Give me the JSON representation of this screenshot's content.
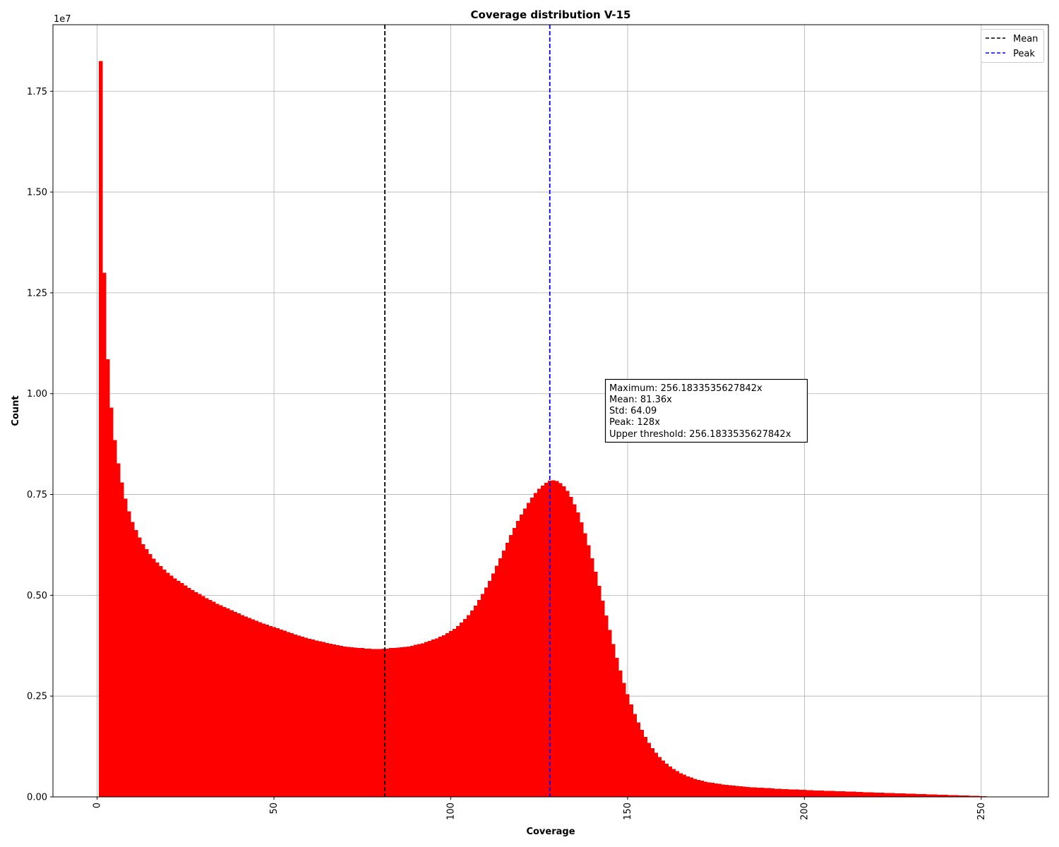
{
  "chart_data": {
    "type": "bar",
    "title": "Coverage distribution V-15",
    "xlabel": "Coverage",
    "ylabel": "Count",
    "xlim": [
      -12.5,
      269.0
    ],
    "ylim": [
      0,
      19150000
    ],
    "y_offset_label": "1e7",
    "x_ticks": [
      0,
      50,
      100,
      150,
      200,
      250
    ],
    "x_tick_labels": [
      "0",
      "50",
      "100",
      "150",
      "200",
      "250"
    ],
    "y_ticks": [
      0,
      2500000,
      5000000,
      7500000,
      10000000,
      12500000,
      15000000,
      17500000
    ],
    "y_tick_labels": [
      "0.00",
      "0.25",
      "0.50",
      "0.75",
      "1.00",
      "1.25",
      "1.50",
      "1.75"
    ],
    "grid": true,
    "bar_color": "#ff0000",
    "bin_start": 0.5,
    "bin_width": 1.0,
    "bin_values": [
      18250000,
      13000000,
      10850000,
      9650000,
      8850000,
      8270000,
      7800000,
      7400000,
      7080000,
      6820000,
      6620000,
      6430000,
      6270000,
      6140000,
      6020000,
      5910000,
      5810000,
      5720000,
      5640000,
      5560000,
      5490000,
      5420000,
      5360000,
      5300000,
      5240000,
      5180000,
      5130000,
      5080000,
      5030000,
      4980000,
      4930000,
      4880000,
      4840000,
      4790000,
      4750000,
      4710000,
      4670000,
      4630000,
      4590000,
      4550000,
      4510000,
      4470000,
      4440000,
      4400000,
      4370000,
      4330000,
      4300000,
      4270000,
      4240000,
      4210000,
      4180000,
      4150000,
      4120000,
      4090000,
      4060000,
      4030000,
      4000000,
      3970000,
      3950000,
      3920000,
      3900000,
      3880000,
      3860000,
      3840000,
      3820000,
      3800000,
      3780000,
      3760000,
      3750000,
      3730000,
      3720000,
      3710000,
      3700000,
      3690000,
      3690000,
      3680000,
      3680000,
      3670000,
      3670000,
      3670000,
      3680000,
      3680000,
      3690000,
      3690000,
      3700000,
      3710000,
      3720000,
      3730000,
      3750000,
      3770000,
      3790000,
      3810000,
      3840000,
      3870000,
      3900000,
      3930000,
      3970000,
      4010000,
      4060000,
      4110000,
      4170000,
      4240000,
      4320000,
      4410000,
      4510000,
      4620000,
      4740000,
      4880000,
      5030000,
      5190000,
      5360000,
      5540000,
      5730000,
      5920000,
      6110000,
      6300000,
      6490000,
      6670000,
      6840000,
      7000000,
      7150000,
      7290000,
      7420000,
      7540000,
      7640000,
      7720000,
      7790000,
      7840000,
      7850000,
      7830000,
      7780000,
      7700000,
      7590000,
      7440000,
      7260000,
      7050000,
      6810000,
      6540000,
      6240000,
      5920000,
      5580000,
      5230000,
      4870000,
      4500000,
      4140000,
      3790000,
      3450000,
      3130000,
      2830000,
      2550000,
      2290000,
      2060000,
      1850000,
      1660000,
      1490000,
      1340000,
      1210000,
      1090000,
      990000,
      900000,
      820000,
      750000,
      690000,
      640000,
      590000,
      550000,
      510000,
      480000,
      450000,
      420000,
      400000,
      380000,
      360000,
      350000,
      330000,
      320000,
      310000,
      300000,
      290000,
      280000,
      270000,
      260000,
      250000,
      245000,
      240000,
      235000,
      230000,
      225000,
      220000,
      215000,
      210000,
      205000,
      200000,
      196000,
      192000,
      188000,
      184000,
      180000,
      176000,
      172000,
      168000,
      164000,
      160000,
      157000,
      154000,
      151000,
      148000,
      145000,
      142000,
      139000,
      136000,
      133000,
      130000,
      127000,
      124000,
      121000,
      118000,
      115000,
      112000,
      109000,
      106000,
      103000,
      100000,
      97000,
      94000,
      91000,
      88000,
      85000,
      82000,
      79000,
      76000,
      73000,
      70000,
      67000,
      64000,
      61000,
      58000,
      55000,
      52000,
      49000,
      46000,
      43000,
      40000,
      37000,
      34000,
      31000,
      28000,
      25000,
      22000,
      19000,
      16000,
      13000
    ],
    "vlines": [
      {
        "name": "Mean",
        "x": 81.36,
        "color": "#000000"
      },
      {
        "name": "Peak",
        "x": 128,
        "color": "#0000ff"
      }
    ],
    "legend": {
      "placement": "upper right",
      "entries": [
        {
          "label": "Mean",
          "color": "#000000"
        },
        {
          "label": "Peak",
          "color": "#0000ff"
        }
      ]
    },
    "annotation": {
      "lines": [
        "Maximum: 256.1833535627842x",
        "Mean: 81.36x",
        "Std: 64.09",
        "Peak: 128x",
        "Upper threshold: 256.1833535627842x"
      ]
    }
  }
}
